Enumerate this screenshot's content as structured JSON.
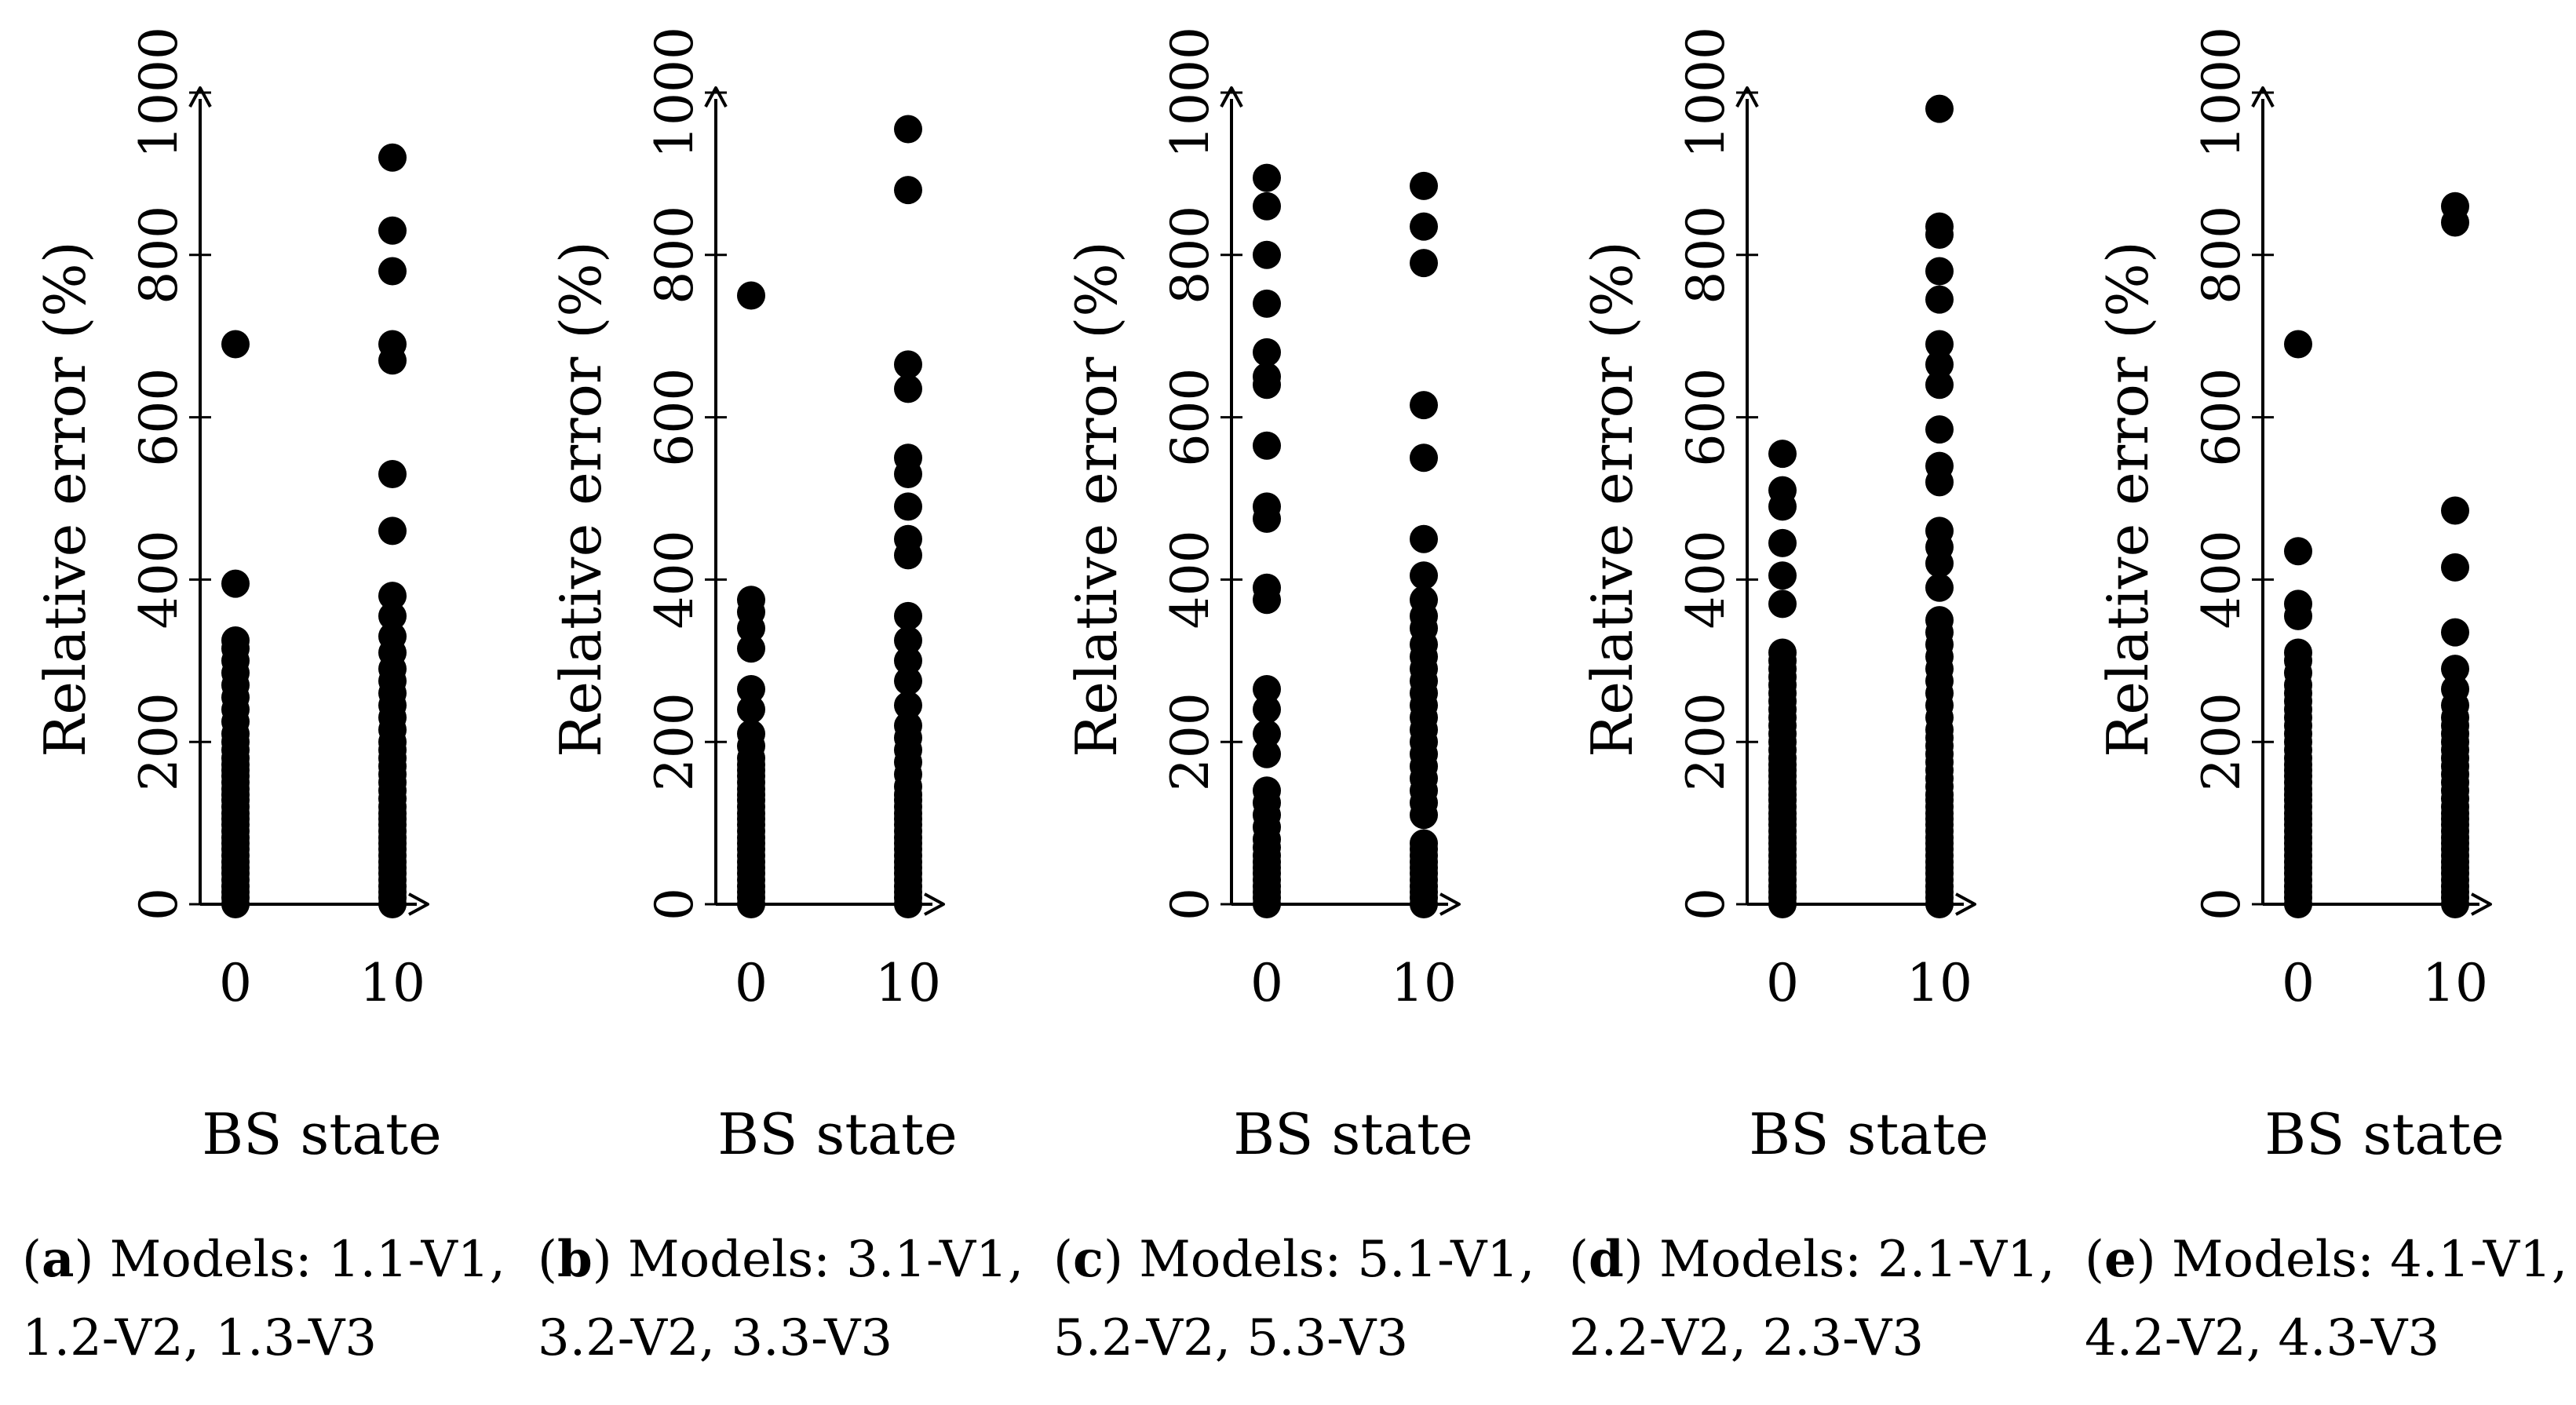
{
  "figure": {
    "panels": [
      {
        "letter": "a",
        "caption_prefix": "Models: ",
        "caption_models": [
          "1.1-V1",
          "1.2-V2",
          "1.3-V3"
        ]
      },
      {
        "letter": "b",
        "caption_prefix": "Models: ",
        "caption_models": [
          "3.1-V1",
          "3.2-V2",
          "3.3-V3"
        ]
      },
      {
        "letter": "c",
        "caption_prefix": "Models: ",
        "caption_models": [
          "5.1-V1",
          "5.2-V2",
          "5.3-V3"
        ]
      },
      {
        "letter": "d",
        "caption_prefix": "Models: ",
        "caption_models": [
          "2.1-V1",
          "2.2-V2",
          "2.3-V3"
        ]
      },
      {
        "letter": "e",
        "caption_prefix": "Models: ",
        "caption_models": [
          "4.1-V1",
          "4.2-V2",
          "4.3-V3"
        ]
      }
    ]
  },
  "chart_data": [
    {
      "type": "scatter",
      "title": "(a) Models: 1.1-V1, 1.2-V2, 1.3-V3",
      "xlabel": "BS state",
      "ylabel": "Relative error (%)",
      "xticks": [
        0,
        10
      ],
      "yticks": [
        0,
        200,
        400,
        600,
        800,
        1000
      ],
      "ylim": [
        0,
        1000
      ],
      "grid": false,
      "series": [
        {
          "name": "BS state 0",
          "x": 0,
          "values": [
            0,
            8,
            15,
            22,
            30,
            38,
            45,
            52,
            60,
            68,
            75,
            82,
            90,
            98,
            105,
            112,
            120,
            128,
            135,
            142,
            150,
            158,
            165,
            172,
            180,
            190,
            200,
            210,
            225,
            240,
            255,
            270,
            285,
            300,
            315,
            325,
            395,
            690
          ]
        },
        {
          "name": "BS state 10",
          "x": 10,
          "values": [
            0,
            8,
            15,
            22,
            30,
            38,
            45,
            52,
            60,
            68,
            75,
            82,
            90,
            98,
            105,
            112,
            120,
            130,
            140,
            150,
            160,
            170,
            180,
            190,
            200,
            215,
            230,
            245,
            260,
            275,
            290,
            310,
            330,
            355,
            380,
            460,
            530,
            670,
            690,
            780,
            830,
            920
          ]
        }
      ]
    },
    {
      "type": "scatter",
      "title": "(b) Models: 3.1-V1, 3.2-V2, 3.3-V3",
      "xlabel": "BS state",
      "ylabel": "Relative error (%)",
      "xticks": [
        0,
        10
      ],
      "yticks": [
        0,
        200,
        400,
        600,
        800,
        1000
      ],
      "ylim": [
        0,
        1000
      ],
      "grid": false,
      "series": [
        {
          "name": "BS state 0",
          "x": 0,
          "values": [
            0,
            8,
            15,
            22,
            30,
            38,
            45,
            52,
            60,
            68,
            75,
            82,
            90,
            98,
            105,
            112,
            120,
            128,
            135,
            142,
            150,
            158,
            165,
            172,
            180,
            195,
            210,
            240,
            265,
            315,
            340,
            360,
            375,
            750
          ]
        },
        {
          "name": "BS state 10",
          "x": 10,
          "values": [
            0,
            8,
            15,
            22,
            30,
            38,
            45,
            52,
            60,
            68,
            75,
            82,
            90,
            98,
            105,
            112,
            120,
            128,
            135,
            145,
            160,
            175,
            190,
            205,
            220,
            245,
            275,
            300,
            325,
            355,
            430,
            450,
            490,
            530,
            550,
            635,
            665,
            880,
            955
          ]
        }
      ]
    },
    {
      "type": "scatter",
      "title": "(c) Models: 5.1-V1, 5.2-V2, 5.3-V3",
      "xlabel": "BS state",
      "ylabel": "Relative error (%)",
      "xticks": [
        0,
        10
      ],
      "yticks": [
        0,
        200,
        400,
        600,
        800,
        1000
      ],
      "ylim": [
        0,
        1000
      ],
      "grid": false,
      "series": [
        {
          "name": "BS state 0",
          "x": 0,
          "values": [
            0,
            8,
            15,
            22,
            30,
            38,
            45,
            52,
            60,
            70,
            80,
            95,
            110,
            125,
            140,
            185,
            210,
            240,
            265,
            375,
            390,
            475,
            490,
            565,
            640,
            650,
            680,
            740,
            800,
            860,
            895
          ]
        },
        {
          "name": "BS state 10",
          "x": 10,
          "values": [
            0,
            8,
            15,
            22,
            30,
            38,
            45,
            52,
            60,
            68,
            75,
            110,
            125,
            140,
            155,
            170,
            185,
            200,
            215,
            230,
            245,
            260,
            275,
            290,
            305,
            320,
            340,
            355,
            375,
            405,
            450,
            550,
            615,
            790,
            835,
            885
          ]
        }
      ]
    },
    {
      "type": "scatter",
      "title": "(d) Models: 2.1-V1, 2.2-V2, 2.3-V3",
      "xlabel": "BS state",
      "ylabel": "Relative error (%)",
      "xticks": [
        0,
        10
      ],
      "yticks": [
        0,
        200,
        400,
        600,
        800,
        1000
      ],
      "ylim": [
        0,
        1000
      ],
      "grid": false,
      "series": [
        {
          "name": "BS state 0",
          "x": 0,
          "values": [
            0,
            8,
            15,
            22,
            30,
            38,
            45,
            52,
            60,
            68,
            75,
            82,
            90,
            98,
            105,
            112,
            120,
            128,
            135,
            142,
            150,
            158,
            165,
            172,
            180,
            190,
            200,
            210,
            220,
            230,
            240,
            250,
            260,
            270,
            280,
            290,
            300,
            310,
            370,
            405,
            445,
            490,
            510,
            555
          ]
        },
        {
          "name": "BS state 10",
          "x": 10,
          "values": [
            0,
            8,
            15,
            22,
            30,
            38,
            45,
            52,
            60,
            68,
            75,
            82,
            90,
            98,
            105,
            112,
            120,
            128,
            135,
            145,
            155,
            165,
            175,
            185,
            195,
            205,
            215,
            230,
            245,
            260,
            275,
            290,
            305,
            320,
            335,
            350,
            390,
            420,
            440,
            460,
            520,
            540,
            585,
            640,
            665,
            690,
            745,
            780,
            825,
            835,
            980
          ]
        }
      ]
    },
    {
      "type": "scatter",
      "title": "(e) Models: 4.1-V1, 4.2-V2, 4.3-V3",
      "xlabel": "BS state",
      "ylabel": "Relative error (%)",
      "xticks": [
        0,
        10
      ],
      "yticks": [
        0,
        200,
        400,
        600,
        800,
        1000
      ],
      "ylim": [
        0,
        1000
      ],
      "grid": false,
      "series": [
        {
          "name": "BS state 0",
          "x": 0,
          "values": [
            0,
            8,
            15,
            22,
            30,
            38,
            45,
            52,
            60,
            68,
            75,
            82,
            90,
            98,
            105,
            112,
            120,
            128,
            135,
            142,
            150,
            158,
            165,
            172,
            180,
            190,
            200,
            210,
            220,
            230,
            240,
            250,
            260,
            270,
            285,
            300,
            310,
            355,
            370,
            435,
            690
          ]
        },
        {
          "name": "BS state 10",
          "x": 10,
          "values": [
            0,
            8,
            15,
            22,
            30,
            38,
            45,
            52,
            60,
            68,
            75,
            82,
            90,
            98,
            105,
            112,
            120,
            130,
            140,
            150,
            160,
            170,
            180,
            190,
            200,
            210,
            220,
            230,
            245,
            265,
            290,
            335,
            415,
            485,
            840,
            860
          ]
        }
      ]
    }
  ]
}
